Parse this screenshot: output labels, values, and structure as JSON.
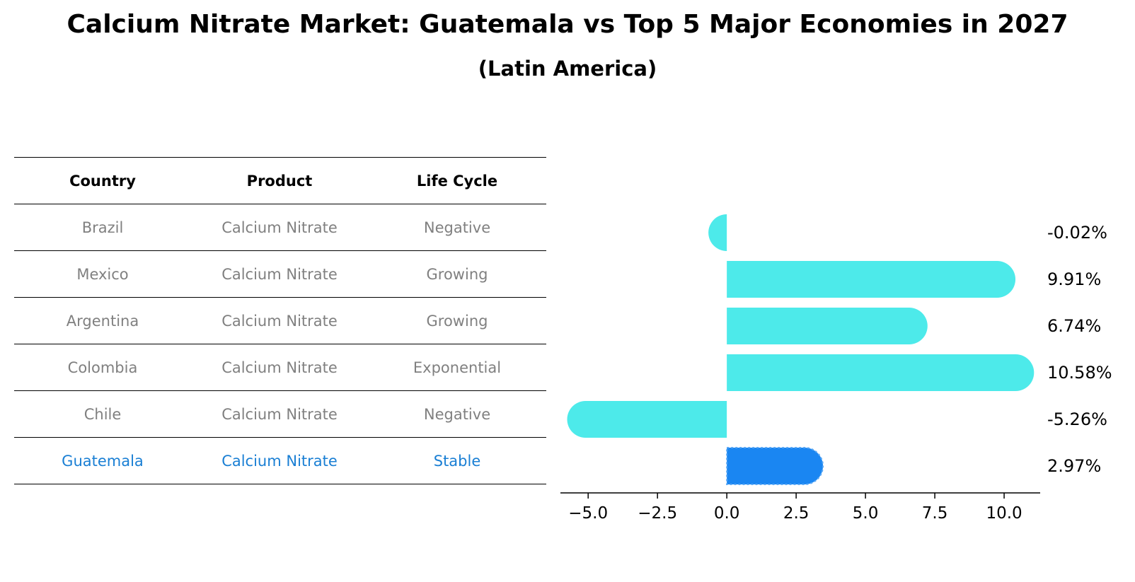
{
  "title": "Calcium Nitrate Market: Guatemala vs Top 5 Major Economies in 2027",
  "subtitle": "(Latin America)",
  "table": {
    "headers": [
      "Country",
      "Product",
      "Life Cycle"
    ],
    "rows": [
      {
        "country": "Brazil",
        "product": "Calcium Nitrate",
        "life_cycle": "Negative"
      },
      {
        "country": "Mexico",
        "product": "Calcium Nitrate",
        "life_cycle": "Growing"
      },
      {
        "country": "Argentina",
        "product": "Calcium Nitrate",
        "life_cycle": "Growing"
      },
      {
        "country": "Colombia",
        "product": "Calcium Nitrate",
        "life_cycle": "Exponential"
      },
      {
        "country": "Chile",
        "product": "Calcium Nitrate",
        "life_cycle": "Negative"
      },
      {
        "country": "Guatemala",
        "product": "Calcium Nitrate",
        "life_cycle": "Stable"
      }
    ]
  },
  "colors": {
    "bar": "#4deaea",
    "highlight_bar": "#1a86f2",
    "highlight_text": "#1a7fd4",
    "muted_text": "#808080"
  },
  "chart_data": {
    "type": "bar",
    "orientation": "horizontal",
    "categories": [
      "Brazil",
      "Mexico",
      "Argentina",
      "Colombia",
      "Chile",
      "Guatemala"
    ],
    "values": [
      -0.02,
      9.91,
      6.74,
      10.58,
      -5.26,
      2.97
    ],
    "value_labels": [
      "-0.02%",
      "9.91%",
      "6.74%",
      "10.58%",
      "-5.26%",
      "2.97%"
    ],
    "highlight_index": 5,
    "xlim": [
      -6.0,
      11.3
    ],
    "xticks": [
      -5.0,
      -2.5,
      0.0,
      2.5,
      5.0,
      7.5,
      10.0
    ],
    "xtick_labels": [
      "−5.0",
      "−2.5",
      "0.0",
      "2.5",
      "5.0",
      "7.5",
      "10.0"
    ],
    "grid": false
  }
}
